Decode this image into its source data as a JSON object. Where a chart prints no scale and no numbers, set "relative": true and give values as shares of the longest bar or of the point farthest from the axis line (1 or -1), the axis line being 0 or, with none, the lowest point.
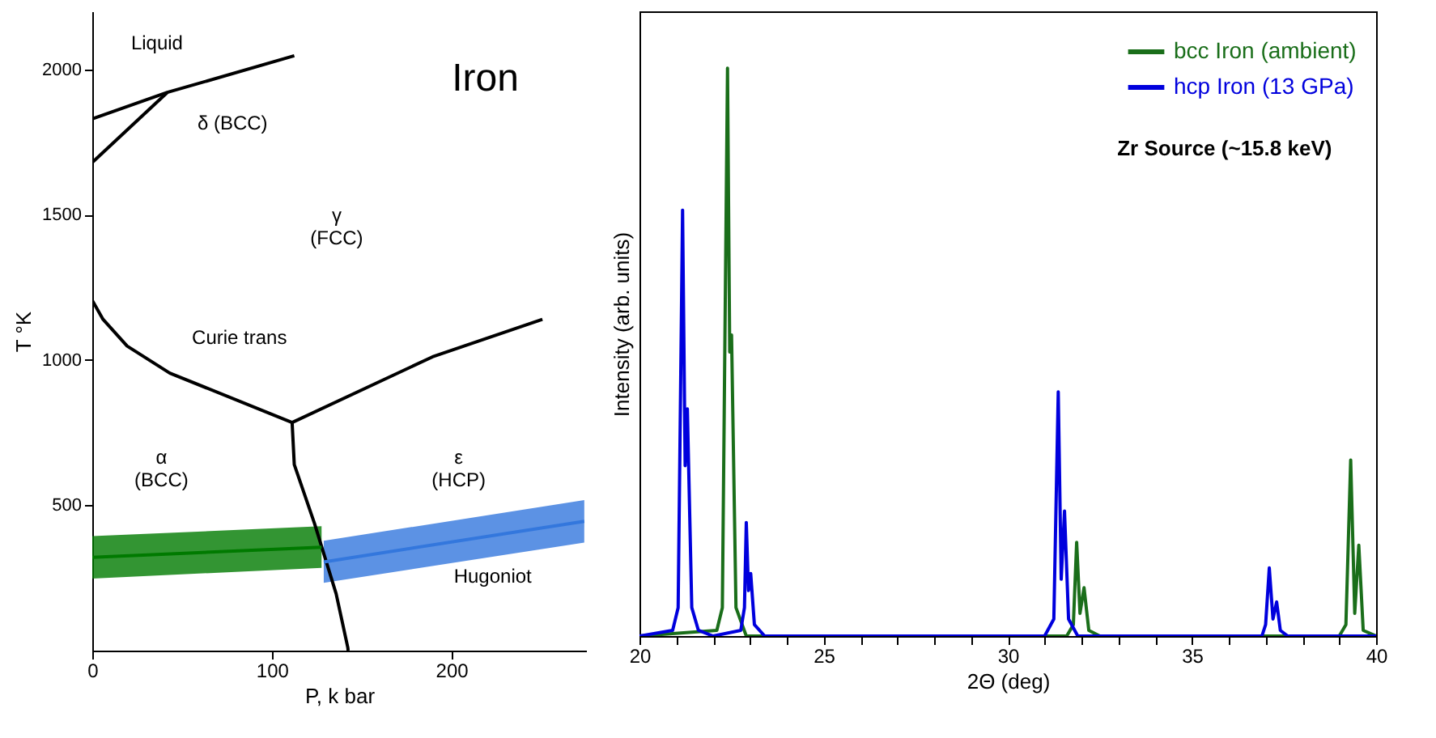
{
  "chart_data": [
    {
      "type": "line",
      "xlabel": "P, k bar",
      "ylabel": "T °K",
      "xlim": [
        0,
        275
      ],
      "ylim": [
        0,
        2200
      ],
      "xticks": [
        0,
        100,
        200
      ],
      "yticks": [
        500,
        1000,
        1500,
        2000
      ],
      "annotations": [
        "Iron",
        "Liquid",
        "δ (BCC)",
        "γ\n(FCC)",
        "Curie trans",
        "α\n(BCC)",
        "ε\n(HCP)",
        "Hugoniot"
      ],
      "series": [
        {
          "color": "#000000",
          "x": [
            0,
            41.8,
            112.5
          ],
          "values": [
            1830,
            1921,
            2047
          ]
        },
        {
          "color": "#000000",
          "x": [
            0,
            41.8
          ],
          "values": [
            1680,
            1921
          ]
        },
        {
          "color": "#000000",
          "x": [
            0,
            6,
            19.4,
            43.2,
            111.3
          ],
          "values": [
            1205,
            1140,
            1048,
            955,
            785
          ]
        },
        {
          "color": "#000000",
          "x": [
            111.3,
            189.5,
            250.7
          ],
          "values": [
            785,
            1011,
            1140
          ]
        },
        {
          "color": "#000000",
          "x": [
            111.3,
            112.5,
            123.8,
            135.8,
            142.3,
            142.5
          ],
          "values": [
            785,
            640,
            437,
            196,
            11,
            0
          ]
        },
        {
          "color": "#007a00",
          "x": [
            0,
            127.7
          ],
          "values": [
            321,
            356
          ],
          "lower": [
            248,
            285
          ],
          "upper": [
            394,
            428
          ]
        },
        {
          "color": "#3377dd",
          "x": [
            128.9,
            274
          ],
          "values": [
            305,
            445
          ],
          "lower": [
            233,
            372
          ],
          "upper": [
            378,
            518
          ]
        }
      ]
    },
    {
      "type": "line",
      "xlabel": "2Θ (deg)",
      "ylabel": "Intensity (arb. units)",
      "relative": true,
      "xlim": [
        20,
        40
      ],
      "xticks": [
        20,
        {
          "value": 21,
          "label": null
        },
        {
          "value": 22,
          "label": null
        },
        {
          "value": 23,
          "label": null
        },
        {
          "value": 24,
          "label": null
        },
        25,
        {
          "value": 26,
          "label": null
        },
        {
          "value": 27,
          "label": null
        },
        {
          "value": 28,
          "label": null
        },
        {
          "value": 29,
          "label": null
        },
        30,
        {
          "value": 31,
          "label": null
        },
        {
          "value": 32,
          "label": null
        },
        {
          "value": 33,
          "label": null
        },
        {
          "value": 34,
          "label": null
        },
        35,
        {
          "value": 36,
          "label": null
        },
        {
          "value": 37,
          "label": null
        },
        {
          "value": 38,
          "label": null
        },
        {
          "value": 39,
          "label": null
        },
        40
      ],
      "tick_labels": "x",
      "legend": "top right",
      "annotations": [
        "Zr Source (~15.8 keV)"
      ],
      "series": [
        {
          "name": "bcc Iron (ambient)",
          "color": "#1a6e1a",
          "x": [
            20,
            22.1,
            22.25,
            22.39,
            22.45,
            22.5,
            22.62,
            22.9,
            31.6,
            31.78,
            31.87,
            31.96,
            32.07,
            32.2,
            32.5,
            39,
            39.18,
            39.31,
            39.42,
            39.53,
            39.65,
            40
          ],
          "values": [
            0,
            0.01,
            0.05,
            1,
            0.5,
            0.53,
            0.05,
            0,
            0,
            0.02,
            0.165,
            0.04,
            0.085,
            0.01,
            0,
            0,
            0.02,
            0.31,
            0.04,
            0.16,
            0.01,
            0
          ]
        },
        {
          "name": "hcp Iron (13 GPa)",
          "color": "#0000dd",
          "x": [
            20,
            20.9,
            21.05,
            21.17,
            21.24,
            21.3,
            21.42,
            21.6,
            22,
            22.75,
            22.85,
            22.9,
            22.96,
            23.02,
            23.12,
            23.4,
            31,
            31.25,
            31.37,
            31.45,
            31.54,
            31.65,
            31.9,
            36.9,
            37,
            37.1,
            37.2,
            37.3,
            37.4,
            37.6,
            40
          ],
          "values": [
            0,
            0.01,
            0.05,
            0.75,
            0.3,
            0.4,
            0.05,
            0.01,
            0,
            0.01,
            0.05,
            0.2,
            0.08,
            0.11,
            0.02,
            0,
            0,
            0.03,
            0.43,
            0.1,
            0.22,
            0.03,
            0,
            0,
            0.02,
            0.12,
            0.03,
            0.06,
            0.01,
            0,
            0
          ]
        }
      ]
    }
  ]
}
